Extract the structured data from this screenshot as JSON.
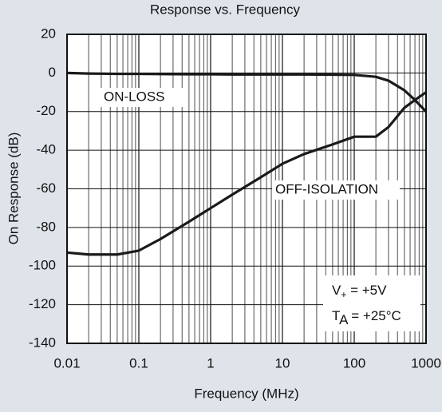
{
  "chart_data": {
    "type": "line",
    "title": "Response vs. Frequency",
    "xlabel": "Frequency (MHz)",
    "ylabel": "On Response (dB)",
    "xscale": "log",
    "grid": true,
    "x": [
      0.01,
      0.02,
      0.05,
      0.1,
      0.2,
      0.5,
      1,
      2,
      5,
      10,
      20,
      50,
      100,
      200,
      300,
      500,
      700,
      1000
    ],
    "series": [
      {
        "name": "ON-LOSS",
        "color": "#1a1a1a",
        "values": [
          0,
          -0.3,
          -0.5,
          -0.5,
          -0.6,
          -0.7,
          -0.7,
          -0.8,
          -0.8,
          -0.8,
          -0.8,
          -0.9,
          -1,
          -2,
          -4,
          -9,
          -14,
          -20
        ]
      },
      {
        "name": "OFF-ISOLATION",
        "color": "#1a1a1a",
        "values": [
          -93,
          -94,
          -94,
          -92,
          -86,
          -77,
          -70,
          -63,
          -54,
          -47,
          -42,
          -37,
          -33,
          -33,
          -28,
          -18,
          -14,
          -10
        ]
      }
    ],
    "xlim": [
      0.01,
      1000
    ],
    "xticks": [
      0.01,
      0.1,
      1,
      10,
      100,
      1000
    ],
    "ylim": [
      -140,
      20
    ],
    "yticks": [
      20,
      0,
      -20,
      -40,
      -60,
      -80,
      -100,
      -120,
      -140
    ],
    "conditions": [
      {
        "symbol": "V",
        "subscript": "+",
        "text": " = +5V"
      },
      {
        "symbol": "T",
        "subscript": "A",
        "text": " = +25°C"
      }
    ]
  }
}
